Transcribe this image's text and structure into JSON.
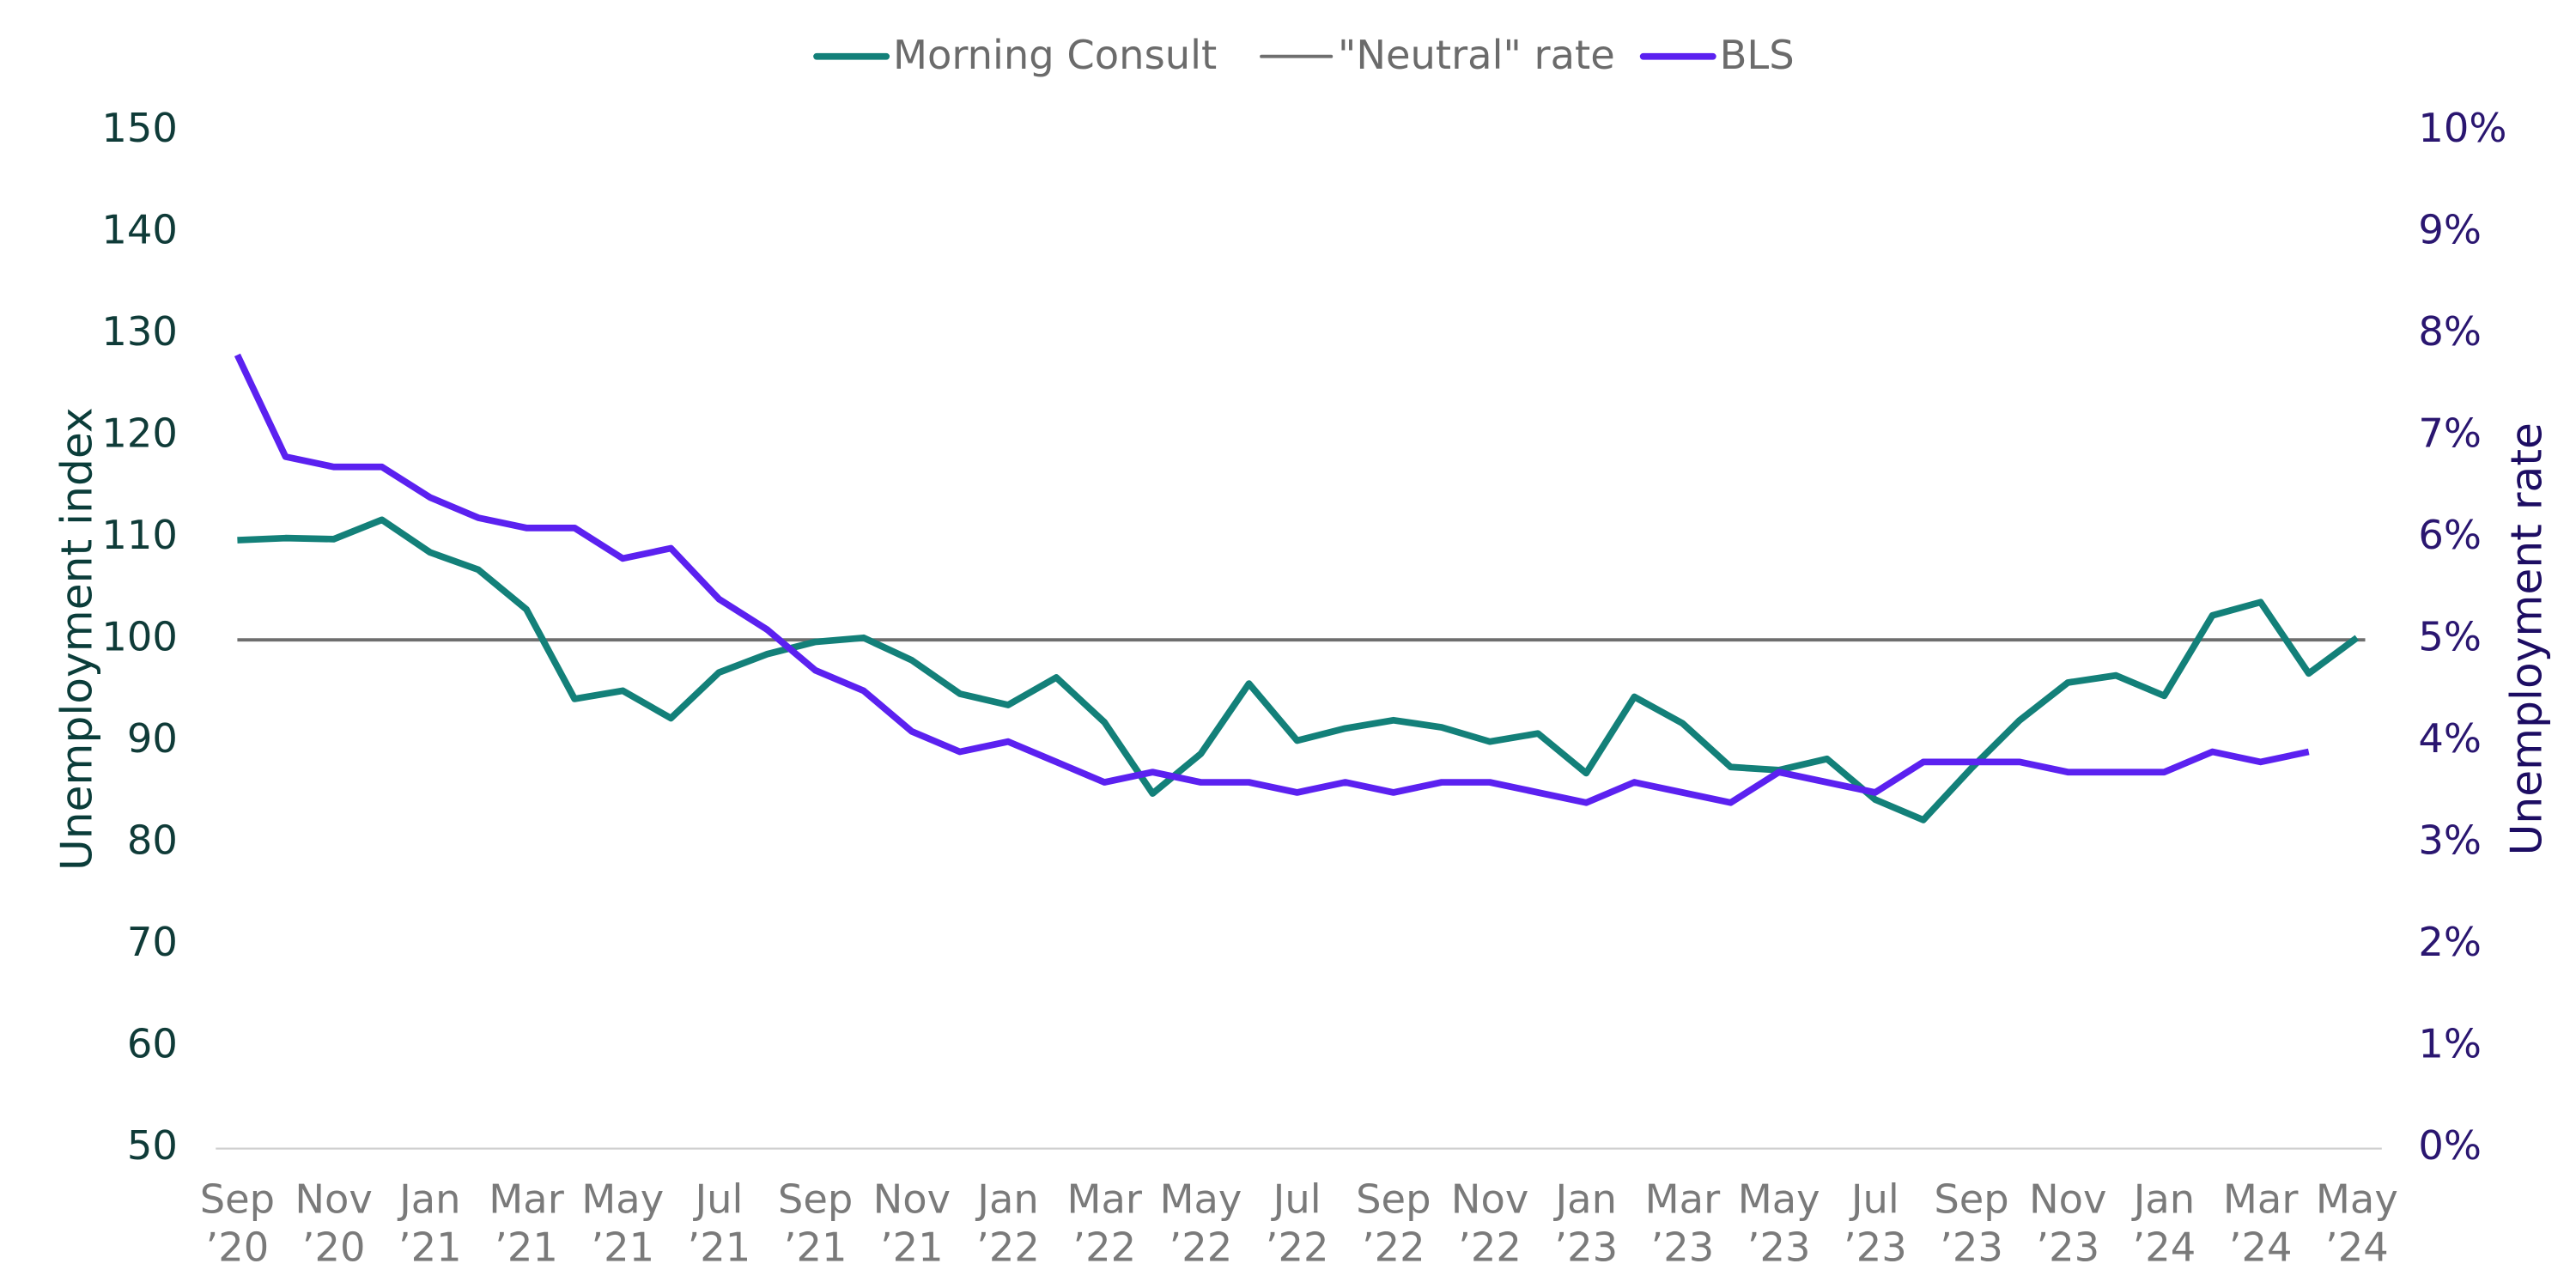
{
  "chart_data": {
    "type": "line",
    "categories": [
      "Sep ’20",
      null,
      "Nov ’20",
      null,
      "Jan ’21",
      null,
      "Mar ’21",
      null,
      "May ’21",
      null,
      "Jul ’21",
      null,
      "Sep ’21",
      null,
      "Nov ’21",
      null,
      "Jan ’22",
      null,
      "Mar ’22",
      null,
      "May ’22",
      null,
      "Jul ’22",
      null,
      "Sep ’22",
      null,
      "Nov ’22",
      null,
      "Jan ’23",
      null,
      "Mar ’23",
      null,
      "May ’23",
      null,
      "Jul ’23",
      null,
      "Sep ’23",
      null,
      "Nov ’23",
      null,
      "Jan ’24",
      null,
      "Mar ’24",
      null,
      "May ’24"
    ],
    "series": [
      {
        "name": "Morning Consult",
        "color": "#138079",
        "values": [
          109.8,
          110.0,
          109.9,
          111.8,
          108.6,
          106.9,
          103.0,
          94.2,
          95.0,
          92.3,
          96.8,
          98.6,
          99.8,
          100.2,
          98.0,
          94.7,
          93.6,
          96.3,
          91.9,
          84.9,
          88.8,
          95.7,
          90.1,
          91.3,
          92.1,
          91.4,
          90.0,
          90.8,
          86.9,
          94.4,
          91.8,
          87.5,
          87.2,
          88.3,
          84.3,
          82.3,
          87.4,
          92.1,
          95.8,
          96.5,
          94.5,
          102.4,
          103.7,
          96.7,
          100.2
        ]
      },
      {
        "name": "BLS",
        "color": "#5b21f0",
        "axis": "y2",
        "values": [
          7.8,
          6.8,
          6.7,
          6.7,
          6.4,
          6.2,
          6.1,
          6.1,
          5.8,
          5.9,
          5.4,
          5.1,
          4.7,
          4.5,
          4.1,
          3.9,
          4.0,
          3.8,
          3.6,
          3.7,
          3.6,
          3.6,
          3.5,
          3.6,
          3.5,
          3.6,
          3.6,
          3.5,
          3.4,
          3.6,
          3.5,
          3.4,
          3.7,
          3.6,
          3.5,
          3.8,
          3.8,
          3.8,
          3.7,
          3.7,
          3.7,
          3.9,
          3.8,
          3.9,
          null
        ]
      }
    ],
    "reference_line": {
      "name": "\"Neutral\" rate",
      "value": 100,
      "color": "#6e6e6e"
    },
    "ylabel": "Unemployment index",
    "y2label": "Unemployment rate",
    "ylim": [
      50,
      150
    ],
    "yticks": [
      50,
      60,
      70,
      80,
      90,
      100,
      110,
      120,
      130,
      140,
      150
    ],
    "y2lim": [
      0,
      10
    ],
    "y2ticks": [
      {
        "value": 0,
        "label": "0%"
      },
      {
        "value": 1,
        "label": "1%"
      },
      {
        "value": 2,
        "label": "2%"
      },
      {
        "value": 3,
        "label": "3%"
      },
      {
        "value": 4,
        "label": "4%"
      },
      {
        "value": 5,
        "label": "5%"
      },
      {
        "value": 6,
        "label": "6%"
      },
      {
        "value": 7,
        "label": "7%"
      },
      {
        "value": 8,
        "label": "8%"
      },
      {
        "value": 9,
        "label": "9%"
      },
      {
        "value": 10,
        "label": "10%"
      }
    ],
    "legend": "top",
    "grid": false
  }
}
